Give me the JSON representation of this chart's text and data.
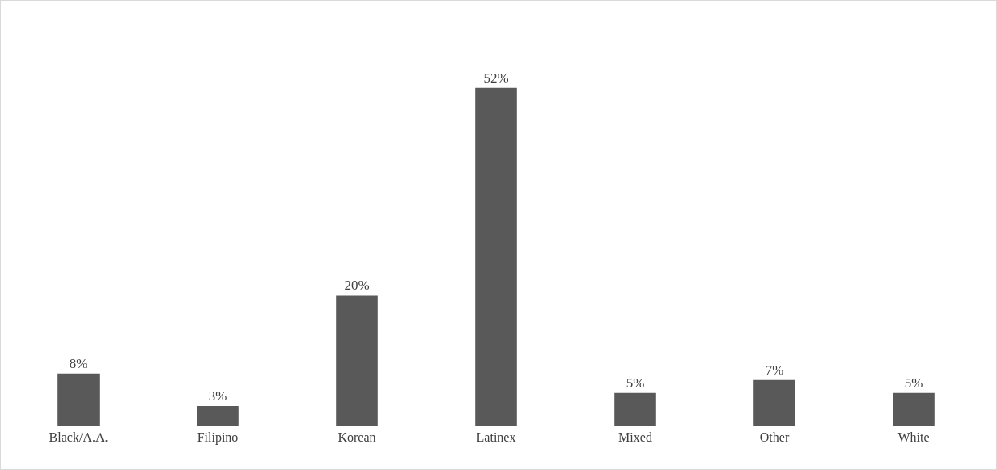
{
  "chart_data": {
    "type": "bar",
    "categories": [
      "Black/A.A.",
      "Filipino",
      "Korean",
      "Latinex",
      "Mixed",
      "Other",
      "White"
    ],
    "values": [
      8,
      3,
      20,
      52,
      5,
      7,
      5
    ],
    "value_labels": [
      "8%",
      "3%",
      "20%",
      "52%",
      "5%",
      "7%",
      "5%"
    ],
    "color": "#595959"
  }
}
